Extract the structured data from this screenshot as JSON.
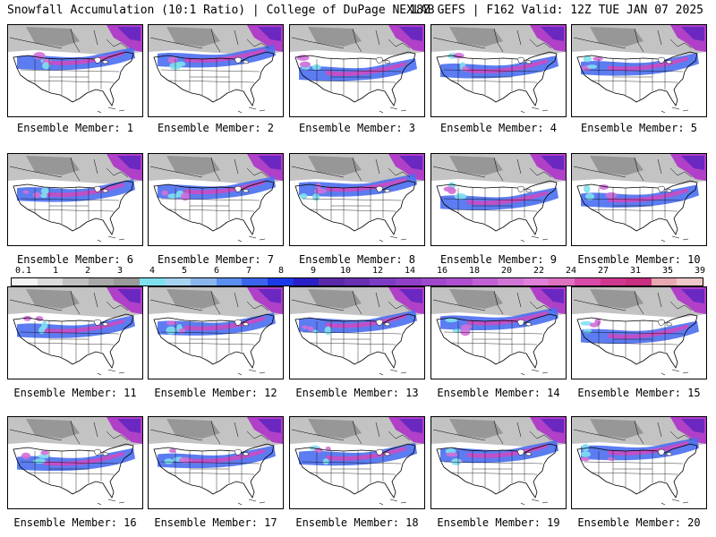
{
  "header": {
    "title": "Snowfall Accumulation (10:1 Ratio) | College of DuPage NEXLAB",
    "run_info": "18Z GEFS | F162 Valid: 12Z TUE JAN 07 2025"
  },
  "legend": {
    "ticks": [
      "0.1",
      "1",
      "2",
      "3",
      "4",
      "5",
      "6",
      "7",
      "8",
      "9",
      "10",
      "12",
      "14",
      "16",
      "18",
      "20",
      "22",
      "24",
      "27",
      "31",
      "35",
      "39"
    ],
    "colors": [
      "#f4f4f4",
      "#dcdcdc",
      "#c0c0c0",
      "#a8a8a8",
      "#9a9a9a",
      "#7fe0f0",
      "#a8d4f4",
      "#8ab6ee",
      "#5a8ef0",
      "#3a64ee",
      "#1a3ae8",
      "#2a20c8",
      "#5a2aa8",
      "#6a30b4",
      "#7c3cc4",
      "#9040c8",
      "#a048cc",
      "#b050d0",
      "#c060d4",
      "#d074d8",
      "#e080d8",
      "#e070c0",
      "#d84aa8",
      "#d03890",
      "#c83080",
      "#e8a8b0",
      "#f0c8c8"
    ]
  },
  "members": [
    {
      "label": "Ensemble Member: 1"
    },
    {
      "label": "Ensemble Member: 2"
    },
    {
      "label": "Ensemble Member: 3"
    },
    {
      "label": "Ensemble Member: 4"
    },
    {
      "label": "Ensemble Member: 5"
    },
    {
      "label": "Ensemble Member: 6"
    },
    {
      "label": "Ensemble Member: 7"
    },
    {
      "label": "Ensemble Member: 8"
    },
    {
      "label": "Ensemble Member: 9"
    },
    {
      "label": "Ensemble Member: 10"
    },
    {
      "label": "Ensemble Member: 11"
    },
    {
      "label": "Ensemble Member: 12"
    },
    {
      "label": "Ensemble Member: 13"
    },
    {
      "label": "Ensemble Member: 14"
    },
    {
      "label": "Ensemble Member: 15"
    },
    {
      "label": "Ensemble Member: 16"
    },
    {
      "label": "Ensemble Member: 17"
    },
    {
      "label": "Ensemble Member: 18"
    },
    {
      "label": "Ensemble Member: 19"
    },
    {
      "label": "Ensemble Member: 20"
    }
  ]
}
